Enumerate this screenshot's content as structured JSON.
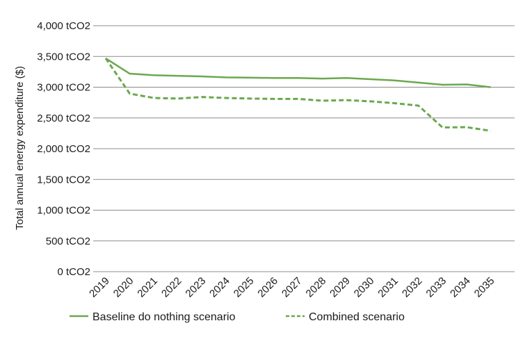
{
  "chart_data": {
    "type": "line",
    "ylabel": "Total annual energy expenditure ($)",
    "xlabel": "",
    "ylim": [
      0,
      4000
    ],
    "y_ticks": [
      0,
      500,
      1000,
      1500,
      2000,
      2500,
      3000,
      3500,
      4000
    ],
    "y_tick_labels": [
      "0 tCO2",
      "500 tCO2",
      "1,000 tCO2",
      "1,500 tCO2",
      "2,000 tCO2",
      "2,500 tCO2",
      "3,000 tCO2",
      "3,500 tCO2",
      "4,000 tCO2"
    ],
    "categories": [
      "2019",
      "2020",
      "2021",
      "2022",
      "2023",
      "2024",
      "2025",
      "2026",
      "2027",
      "2028",
      "2029",
      "2030",
      "2031",
      "2032",
      "2033",
      "2034",
      "2035"
    ],
    "grid": true,
    "legend_position": "bottom",
    "series": [
      {
        "name": "Baseline do nothing scenario",
        "style": "solid",
        "color": "#6aa84f",
        "values": [
          3470,
          3220,
          3195,
          3185,
          3175,
          3160,
          3155,
          3150,
          3150,
          3140,
          3150,
          3130,
          3110,
          3075,
          3040,
          3045,
          3000
        ]
      },
      {
        "name": "Combined scenario",
        "style": "dashed",
        "color": "#6aa84f",
        "values": [
          3470,
          2895,
          2825,
          2815,
          2840,
          2825,
          2815,
          2810,
          2810,
          2780,
          2790,
          2770,
          2740,
          2700,
          2345,
          2350,
          2290
        ]
      }
    ]
  }
}
